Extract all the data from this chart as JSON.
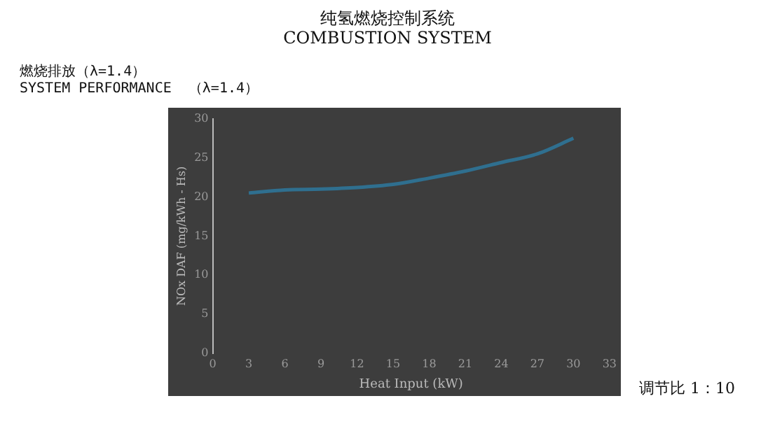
{
  "chart_data": {
    "type": "line",
    "title": "纯氢燃烧控制系统\nCOMBUSTION SYSTEM",
    "subtitle": "燃烧排放（λ=1.4）\nSYSTEM PERFORMANCE  （λ=1.4）",
    "xlabel": "Heat Input (kW)",
    "ylabel": "NOx DAF (mg/kWh - Hs)",
    "annotations": [
      "调节比 1：10"
    ],
    "series": [
      {
        "color": "#2f6f8f",
        "x": [
          3,
          6,
          9,
          12,
          15,
          18,
          21,
          24,
          27,
          30
        ],
        "values": [
          20.5,
          20.9,
          21.0,
          21.2,
          21.6,
          22.4,
          23.3,
          24.4,
          25.5,
          27.5
        ]
      }
    ],
    "xlim": [
      0,
      33
    ],
    "xticks": [
      0,
      3,
      6,
      9,
      12,
      15,
      18,
      21,
      24,
      27,
      30,
      33
    ],
    "ylim": [
      0,
      30
    ],
    "yticks": [
      0,
      5,
      10,
      15,
      20,
      25,
      30
    ],
    "grid": false,
    "legend": false,
    "marker": "none",
    "line_style": "solid"
  }
}
